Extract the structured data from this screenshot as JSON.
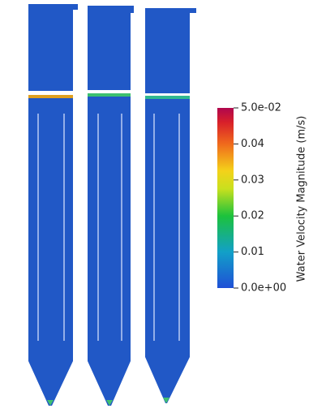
{
  "colorbar": {
    "title": "Water Velocity Magnitude (m/s)",
    "range": [
      0,
      0.05
    ],
    "ticks": [
      {
        "value": 0.05,
        "label": "5.0e-02"
      },
      0.04,
      0.03,
      0.02,
      0.01,
      {
        "value": 0,
        "label": "0.0e+00"
      }
    ]
  }
}
